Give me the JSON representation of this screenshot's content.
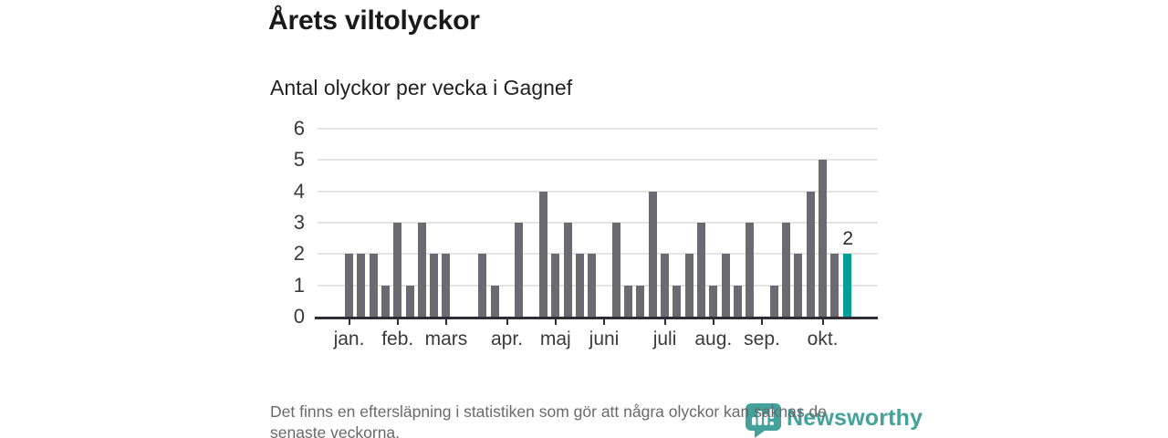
{
  "header": {
    "title": "Årets viltolyckor",
    "subtitle": "Antal olyckor per vecka i Gagnef"
  },
  "chart_data": {
    "type": "bar",
    "title": "Årets viltolyckor",
    "subtitle": "Antal olyckor per vecka i Gagnef",
    "x_unit": "week",
    "values": [
      2,
      2,
      2,
      1,
      3,
      1,
      3,
      2,
      2,
      0,
      0,
      2,
      1,
      0,
      3,
      0,
      4,
      2,
      3,
      2,
      2,
      0,
      3,
      1,
      1,
      4,
      2,
      1,
      2,
      3,
      1,
      2,
      1,
      3,
      0,
      1,
      3,
      2,
      4,
      5,
      2,
      2
    ],
    "ylim": [
      0,
      6
    ],
    "yticks": [
      0,
      1,
      2,
      3,
      4,
      5,
      6
    ],
    "grid": true,
    "x_ticks": [
      {
        "label": "jan.",
        "index": 0
      },
      {
        "label": "feb.",
        "index": 4
      },
      {
        "label": "mars",
        "index": 8
      },
      {
        "label": "apr.",
        "index": 13
      },
      {
        "label": "maj",
        "index": 17
      },
      {
        "label": "juni",
        "index": 21
      },
      {
        "label": "juli",
        "index": 26
      },
      {
        "label": "aug.",
        "index": 30
      },
      {
        "label": "sep.",
        "index": 34
      },
      {
        "label": "okt.",
        "index": 39
      }
    ],
    "bar_color": "#6b6a73",
    "highlight": {
      "index": 41,
      "value": 2,
      "label": "2",
      "color": "#00a096"
    },
    "legend": "none"
  },
  "footer": {
    "line1": "Det finns en eftersläpning i statistiken som gör att några olyckor kan saknas de",
    "line2": "senaste veckorna."
  },
  "logo": {
    "text": "Newsworthy",
    "color": "#44a19b",
    "mark": "bar-chart-bubble-icon"
  }
}
